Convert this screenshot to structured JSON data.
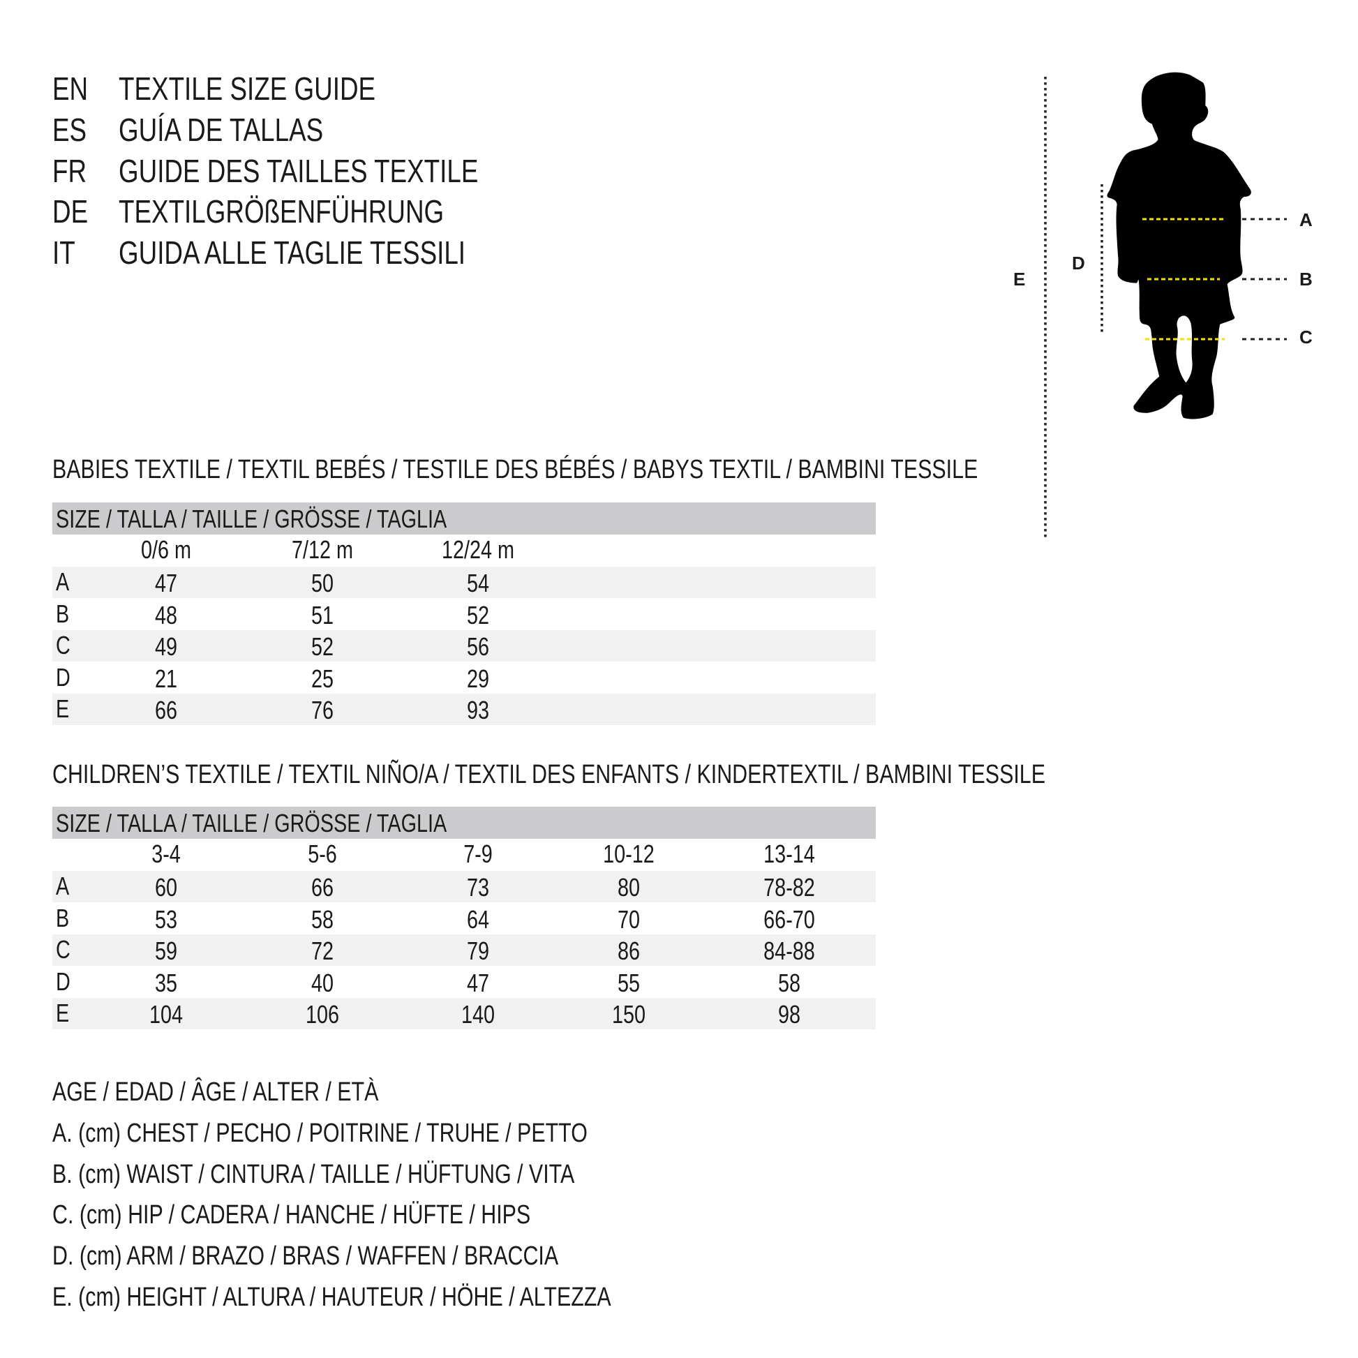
{
  "titles": [
    {
      "lang": "EN",
      "text": "TEXTILE SIZE GUIDE"
    },
    {
      "lang": "ES",
      "text": "GUÍA DE TALLAS"
    },
    {
      "lang": "FR",
      "text": "GUIDE DES TAILLES TEXTILE"
    },
    {
      "lang": "DE",
      "text": "TEXTILGRÖßENFÜHRUNG"
    },
    {
      "lang": "IT",
      "text": "GUIDA ALLE TAGLIE TESSILI"
    }
  ],
  "figure": {
    "labels": {
      "A": "A",
      "B": "B",
      "C": "C",
      "D": "D",
      "E": "E"
    },
    "measure_line_color": "#f2e200",
    "silhouette_color": "#000000"
  },
  "babies": {
    "heading": "BABIES TEXTILE / TEXTIL BEBÉS / TESTILE DES BÉBÉS / BABYS TEXTIL / BAMBINI TESSILE",
    "size_header": "SIZE / TALLA / TAILLE / GRÖSSE / TAGLIA",
    "columns": [
      "0/6 m",
      "7/12 m",
      "12/24 m"
    ],
    "rows": [
      {
        "label": "A",
        "values": [
          "47",
          "50",
          "54"
        ]
      },
      {
        "label": "B",
        "values": [
          "48",
          "51",
          "52"
        ]
      },
      {
        "label": "C",
        "values": [
          "49",
          "52",
          "56"
        ]
      },
      {
        "label": "D",
        "values": [
          "21",
          "25",
          "29"
        ]
      },
      {
        "label": "E",
        "values": [
          "66",
          "76",
          "93"
        ]
      }
    ]
  },
  "children": {
    "heading": "CHILDREN’S TEXTILE / TEXTIL NIÑO/A / TEXTIL DES ENFANTS / KINDERTEXTIL / BAMBINI TESSILE",
    "size_header": "SIZE / TALLA / TAILLE / GRÖSSE / TAGLIA",
    "columns": [
      "3-4",
      "5-6",
      "7-9",
      "10-12",
      "13-14"
    ],
    "rows": [
      {
        "label": "A",
        "values": [
          "60",
          "66",
          "73",
          "80",
          "78-82"
        ]
      },
      {
        "label": "B",
        "values": [
          "53",
          "58",
          "64",
          "70",
          "66-70"
        ]
      },
      {
        "label": "C",
        "values": [
          "59",
          "72",
          "79",
          "86",
          "84-88"
        ]
      },
      {
        "label": "D",
        "values": [
          "35",
          "40",
          "47",
          "55",
          "58"
        ]
      },
      {
        "label": "E",
        "values": [
          "104",
          "106",
          "140",
          "150",
          "98"
        ]
      }
    ]
  },
  "legend": [
    "AGE / EDAD / ÂGE / ALTER / ETÀ",
    "A. (cm) CHEST / PECHO / POITRINE / TRUHE / PETTO",
    "B. (cm) WAIST / CINTURA / TAILLE / HÜFTUNG / VITA",
    "C. (cm) HIP / CADERA / HANCHE / HÜFTE / HIPS",
    "D. (cm) ARM / BRAZO / BRAS / WAFFEN / BRACCIA",
    "E. (cm) HEIGHT / ALTURA / HAUTEUR / HÖHE / ALTEZZA"
  ]
}
